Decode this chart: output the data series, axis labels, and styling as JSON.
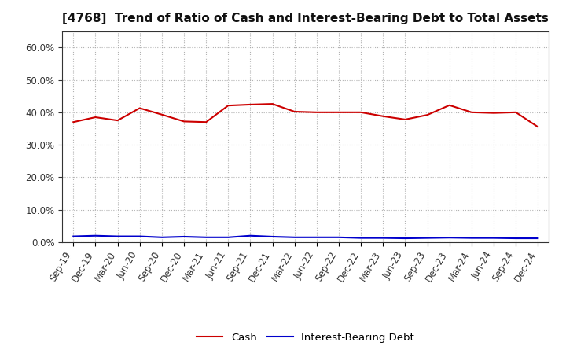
{
  "title": "[4768]  Trend of Ratio of Cash and Interest-Bearing Debt to Total Assets",
  "labels": [
    "Sep-19",
    "Dec-19",
    "Mar-20",
    "Jun-20",
    "Sep-20",
    "Dec-20",
    "Mar-21",
    "Jun-21",
    "Sep-21",
    "Dec-21",
    "Mar-22",
    "Jun-22",
    "Sep-22",
    "Dec-22",
    "Mar-23",
    "Jun-23",
    "Sep-23",
    "Dec-23",
    "Mar-24",
    "Jun-24",
    "Sep-24",
    "Dec-24"
  ],
  "cash": [
    0.37,
    0.385,
    0.375,
    0.413,
    0.393,
    0.372,
    0.37,
    0.421,
    0.424,
    0.426,
    0.402,
    0.4,
    0.4,
    0.4,
    0.388,
    0.378,
    0.392,
    0.422,
    0.4,
    0.398,
    0.4,
    0.355
  ],
  "debt": [
    0.018,
    0.02,
    0.018,
    0.018,
    0.015,
    0.017,
    0.015,
    0.015,
    0.02,
    0.017,
    0.015,
    0.015,
    0.015,
    0.013,
    0.013,
    0.012,
    0.013,
    0.014,
    0.013,
    0.013,
    0.012,
    0.012
  ],
  "cash_color": "#cc0000",
  "debt_color": "#0000cc",
  "ylim": [
    0.0,
    0.65
  ],
  "yticks": [
    0.0,
    0.1,
    0.2,
    0.3,
    0.4,
    0.5,
    0.6
  ],
  "grid_color": "#aaaaaa",
  "legend_cash": "Cash",
  "legend_debt": "Interest-Bearing Debt",
  "background_color": "#ffffff",
  "plot_bg_color": "#ffffff",
  "title_fontsize": 11,
  "tick_fontsize": 8.5,
  "legend_fontsize": 9.5
}
